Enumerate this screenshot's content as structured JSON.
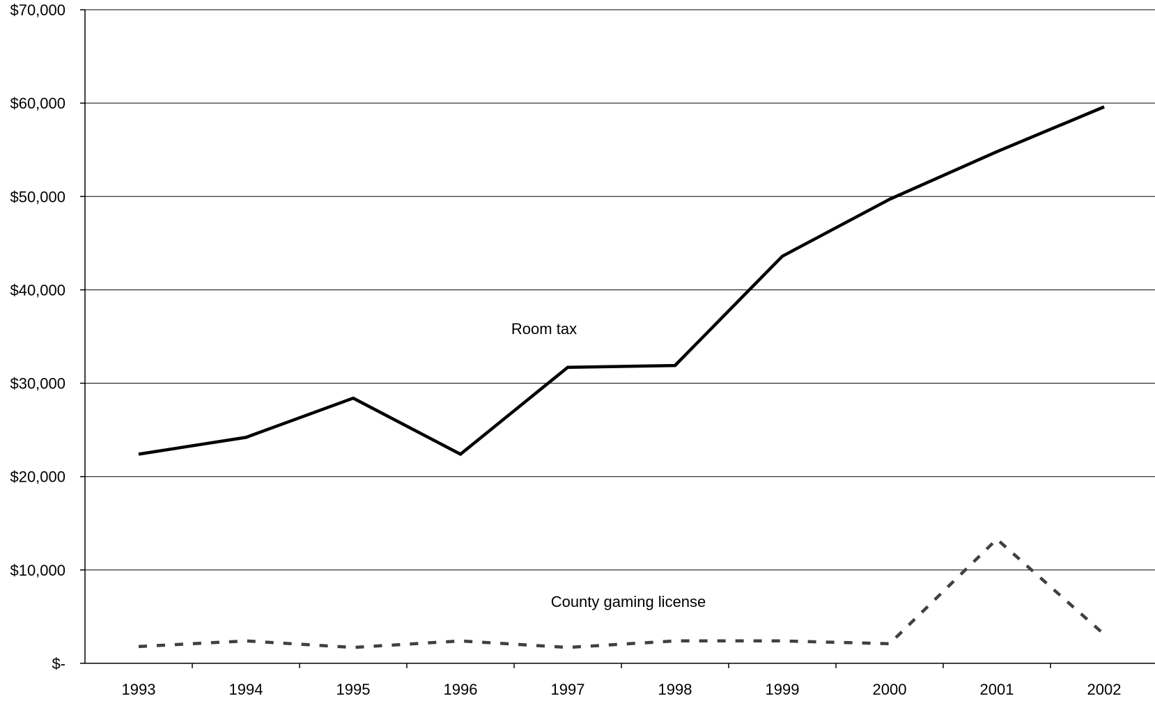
{
  "chart_data": {
    "type": "line",
    "title": "",
    "xlabel": "",
    "ylabel": "",
    "categories": [
      "1993",
      "1994",
      "1995",
      "1996",
      "1997",
      "1998",
      "1999",
      "2000",
      "2001",
      "2002"
    ],
    "ylim": [
      0,
      70000
    ],
    "yticks": [
      0,
      10000,
      20000,
      30000,
      40000,
      50000,
      60000,
      70000
    ],
    "ytick_labels": [
      "$-",
      "$10,000",
      "$20,000",
      "$30,000",
      "$40,000",
      "$50,000",
      "$60,000",
      "$70,000"
    ],
    "grid": "horizontal",
    "legend": "none",
    "series": [
      {
        "name": "Room tax",
        "style": "solid",
        "color": "#000000",
        "values": [
          22400,
          24200,
          28400,
          22400,
          31700,
          31900,
          43600,
          49700,
          54800,
          59600
        ]
      },
      {
        "name": "County gaming license",
        "style": "dashed",
        "color": "#404040",
        "values": [
          1800,
          2400,
          1700,
          2400,
          1700,
          2400,
          2400,
          2100,
          13300,
          3100
        ]
      }
    ]
  }
}
